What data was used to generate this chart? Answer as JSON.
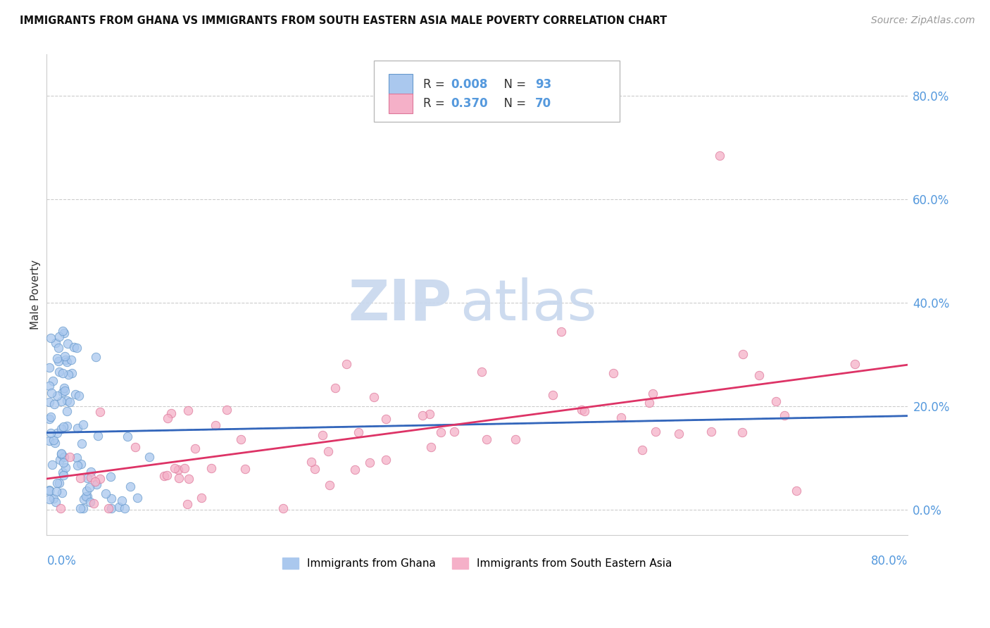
{
  "title": "IMMIGRANTS FROM GHANA VS IMMIGRANTS FROM SOUTH EASTERN ASIA MALE POVERTY CORRELATION CHART",
  "source": "Source: ZipAtlas.com",
  "ylabel": "Male Poverty",
  "x_min": 0.0,
  "x_max": 0.8,
  "y_min": -0.05,
  "y_max": 0.88,
  "yticks": [
    0.0,
    0.2,
    0.4,
    0.6,
    0.8
  ],
  "ghana_R": 0.008,
  "ghana_N": 93,
  "sea_R": 0.37,
  "sea_N": 70,
  "ghana_fill_color": "#aac8ee",
  "ghana_edge_color": "#6699cc",
  "sea_fill_color": "#f5b0c8",
  "sea_edge_color": "#dd7799",
  "ghana_line_color": "#3366bb",
  "sea_line_color": "#dd3366",
  "tick_label_color": "#5599dd",
  "watermark_color": "#c8d8ee",
  "legend_label_ghana": "Immigrants from Ghana",
  "legend_label_sea": "Immigrants from South Eastern Asia"
}
